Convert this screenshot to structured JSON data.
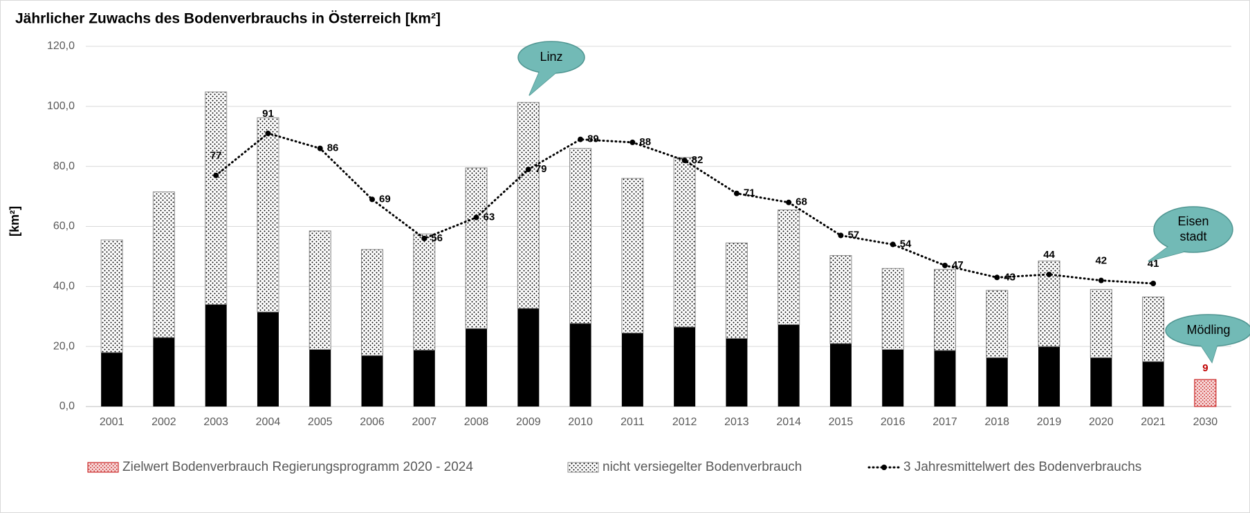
{
  "chart_data": {
    "type": "bar",
    "title": "Jährlicher Zuwachs des Bodenverbrauchs in Österreich [km²]",
    "ylabel": "[km²]",
    "categories": [
      "2001",
      "2002",
      "2003",
      "2004",
      "2005",
      "2006",
      "2007",
      "2008",
      "2009",
      "2010",
      "2011",
      "2012",
      "2013",
      "2014",
      "2015",
      "2016",
      "2017",
      "2018",
      "2019",
      "2020",
      "2021",
      "2030"
    ],
    "stacked": true,
    "series": [
      {
        "kind": "bar",
        "color": "#000000",
        "values": [
          18,
          23,
          34,
          31.5,
          19,
          17,
          18.8,
          26,
          32.7,
          27.7,
          24.5,
          26.5,
          22.7,
          27.3,
          21,
          19,
          18.7,
          16.3,
          20,
          16.3,
          15,
          null
        ]
      },
      {
        "kind": "bar",
        "name": "nicht versiegelter Bodenverbrauch",
        "color": "#000000",
        "pattern": "dots",
        "values": [
          37.5,
          48.5,
          70.8,
          64.7,
          39.5,
          35.3,
          38.7,
          53.5,
          68.6,
          58.3,
          51.5,
          56.5,
          31.8,
          38.2,
          29.3,
          27,
          27,
          22.4,
          28.5,
          22.7,
          21.5,
          null
        ]
      },
      {
        "kind": "bar",
        "name": "Zielwert Bodenverbrauch Regierungsprogramm 2020 - 2024",
        "color": "#c00000",
        "pattern": "dots",
        "values": [
          null,
          null,
          null,
          null,
          null,
          null,
          null,
          null,
          null,
          null,
          null,
          null,
          null,
          null,
          null,
          null,
          null,
          null,
          null,
          null,
          null,
          9
        ],
        "show_labels": true
      },
      {
        "kind": "line",
        "name": "3 Jahresmittelwert des Bodenverbrauchs",
        "color": "#000000",
        "dash": "dotted",
        "values": [
          null,
          null,
          77,
          91,
          86,
          69,
          56,
          63,
          79,
          89,
          88,
          82,
          71,
          68,
          57,
          54,
          47,
          43,
          44,
          42,
          41,
          null
        ],
        "show_labels": true
      }
    ],
    "legend_order": [
      2,
      1,
      3
    ],
    "ylim": [
      0,
      120
    ],
    "yticks": [
      {
        "value": 0,
        "label": "0,0"
      },
      {
        "value": 20,
        "label": "20,0"
      },
      {
        "value": 40,
        "label": "40,0"
      },
      {
        "value": 60,
        "label": "60,0"
      },
      {
        "value": 80,
        "label": "80,0"
      },
      {
        "value": 100,
        "label": "100,0"
      },
      {
        "value": 120,
        "label": "120,0"
      }
    ],
    "grid": true,
    "legend": "bottom",
    "annotations": [
      [
        "Linz"
      ],
      [
        "Eisen",
        "stadt"
      ],
      [
        "Mödling"
      ]
    ]
  }
}
